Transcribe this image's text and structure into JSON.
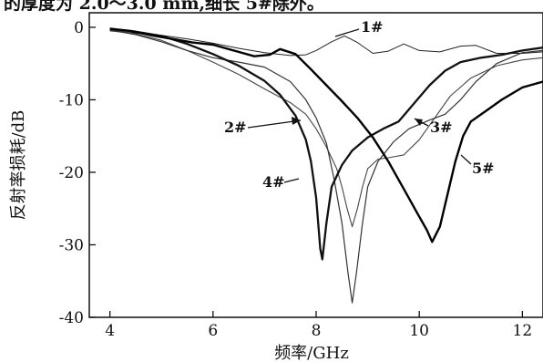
{
  "caption_fragment": "的厚度为 2.0～3.0 mm,细长 5#除外。",
  "chart_data": {
    "type": "line",
    "title": "",
    "xlabel": "频率/GHz",
    "ylabel": "反射率损耗/dB",
    "xlim": [
      3.6,
      12.4
    ],
    "ylim": [
      -40,
      2
    ],
    "xticks": [
      4,
      6,
      8,
      10,
      12
    ],
    "yticks": [
      0,
      -10,
      -20,
      -30,
      -40
    ],
    "x_tick_labels": [
      "4",
      "6",
      "8",
      "10",
      "12"
    ],
    "y_tick_labels": [
      "0",
      "-10",
      "-20",
      "-30",
      "-40"
    ],
    "grid": false,
    "legend": "none (series marked by callout labels)",
    "series": [
      {
        "name": "1#",
        "label": "1#",
        "color": "#222222",
        "points": [
          [
            4.0,
            -0.5
          ],
          [
            4.5,
            -0.8
          ],
          [
            5.0,
            -1.1
          ],
          [
            5.5,
            -1.6
          ],
          [
            6.0,
            -2.2
          ],
          [
            6.5,
            -2.9
          ],
          [
            7.0,
            -3.5
          ],
          [
            7.5,
            -3.9
          ],
          [
            7.8,
            -3.8
          ],
          [
            8.0,
            -3.2
          ],
          [
            8.3,
            -2.0
          ],
          [
            8.55,
            -1.2
          ],
          [
            8.8,
            -2.1
          ],
          [
            9.1,
            -3.6
          ],
          [
            9.4,
            -3.3
          ],
          [
            9.7,
            -2.3
          ],
          [
            10.0,
            -3.2
          ],
          [
            10.4,
            -3.4
          ],
          [
            10.8,
            -2.6
          ],
          [
            11.1,
            -2.5
          ],
          [
            11.5,
            -3.6
          ],
          [
            12.0,
            -3.6
          ],
          [
            12.4,
            -3.4
          ]
        ]
      },
      {
        "name": "2#",
        "label": "2#",
        "color": "#444444",
        "points": [
          [
            4.0,
            -0.3
          ],
          [
            4.5,
            -0.9
          ],
          [
            5.0,
            -1.8
          ],
          [
            5.5,
            -3.2
          ],
          [
            6.0,
            -4.8
          ],
          [
            6.5,
            -6.5
          ],
          [
            7.0,
            -8.5
          ],
          [
            7.5,
            -10.4
          ],
          [
            7.8,
            -12.0
          ],
          [
            8.0,
            -14.0
          ],
          [
            8.2,
            -16.5
          ],
          [
            8.4,
            -19.5
          ],
          [
            8.5,
            -22.0
          ],
          [
            8.6,
            -25.0
          ],
          [
            8.7,
            -27.5
          ],
          [
            8.8,
            -25.0
          ],
          [
            8.9,
            -22.0
          ],
          [
            9.0,
            -19.5
          ],
          [
            9.2,
            -18.2
          ],
          [
            9.4,
            -18.0
          ],
          [
            9.7,
            -17.6
          ],
          [
            10.0,
            -15.5
          ],
          [
            10.3,
            -12.5
          ],
          [
            10.6,
            -9.5
          ],
          [
            11.0,
            -7.0
          ],
          [
            11.5,
            -5.3
          ],
          [
            12.0,
            -4.5
          ],
          [
            12.4,
            -4.2
          ]
        ]
      },
      {
        "name": "3#",
        "label": "3#",
        "color": "#333333",
        "points": [
          [
            4.0,
            -0.4
          ],
          [
            4.5,
            -1.0
          ],
          [
            5.0,
            -2.0
          ],
          [
            5.5,
            -3.2
          ],
          [
            6.0,
            -4.2
          ],
          [
            6.5,
            -4.8
          ],
          [
            7.0,
            -5.5
          ],
          [
            7.5,
            -7.5
          ],
          [
            7.8,
            -10.0
          ],
          [
            8.0,
            -12.5
          ],
          [
            8.2,
            -16.0
          ],
          [
            8.35,
            -21.0
          ],
          [
            8.5,
            -27.0
          ],
          [
            8.62,
            -34.0
          ],
          [
            8.7,
            -38.0
          ],
          [
            8.78,
            -34.0
          ],
          [
            8.9,
            -27.0
          ],
          [
            9.0,
            -22.0
          ],
          [
            9.2,
            -18.5
          ],
          [
            9.5,
            -15.8
          ],
          [
            9.8,
            -14.0
          ],
          [
            10.2,
            -12.8
          ],
          [
            10.5,
            -12.0
          ],
          [
            10.8,
            -10.0
          ],
          [
            11.1,
            -7.5
          ],
          [
            11.5,
            -5.0
          ],
          [
            12.0,
            -3.5
          ],
          [
            12.4,
            -3.2
          ]
        ]
      },
      {
        "name": "4#",
        "label": "4#",
        "color": "#111111",
        "points": [
          [
            4.0,
            -0.2
          ],
          [
            4.5,
            -0.6
          ],
          [
            5.0,
            -1.2
          ],
          [
            5.5,
            -2.3
          ],
          [
            6.0,
            -3.7
          ],
          [
            6.5,
            -5.3
          ],
          [
            7.0,
            -7.4
          ],
          [
            7.3,
            -9.3
          ],
          [
            7.6,
            -12.2
          ],
          [
            7.8,
            -15.5
          ],
          [
            7.9,
            -18.5
          ],
          [
            8.0,
            -23.5
          ],
          [
            8.08,
            -30.5
          ],
          [
            8.12,
            -32.0
          ],
          [
            8.2,
            -27.0
          ],
          [
            8.3,
            -22.0
          ],
          [
            8.5,
            -19.0
          ],
          [
            8.7,
            -17.0
          ],
          [
            9.0,
            -15.2
          ],
          [
            9.3,
            -14.0
          ],
          [
            9.6,
            -13.0
          ],
          [
            9.9,
            -10.5
          ],
          [
            10.2,
            -8.0
          ],
          [
            10.5,
            -6.0
          ],
          [
            10.8,
            -4.8
          ],
          [
            11.2,
            -4.2
          ],
          [
            11.6,
            -3.8
          ],
          [
            12.0,
            -3.2
          ],
          [
            12.4,
            -2.8
          ]
        ]
      },
      {
        "name": "5#",
        "label": "5#",
        "color": "#000000",
        "points": [
          [
            4.0,
            -0.2
          ],
          [
            4.4,
            -0.5
          ],
          [
            4.8,
            -1.1
          ],
          [
            5.2,
            -1.6
          ],
          [
            5.6,
            -2.1
          ],
          [
            6.0,
            -2.4
          ],
          [
            6.4,
            -3.2
          ],
          [
            6.8,
            -4.0
          ],
          [
            7.1,
            -3.8
          ],
          [
            7.3,
            -3.0
          ],
          [
            7.6,
            -3.7
          ],
          [
            7.9,
            -5.8
          ],
          [
            8.2,
            -8.0
          ],
          [
            8.5,
            -10.2
          ],
          [
            8.8,
            -12.5
          ],
          [
            9.1,
            -15.2
          ],
          [
            9.4,
            -18.5
          ],
          [
            9.7,
            -22.3
          ],
          [
            9.95,
            -25.5
          ],
          [
            10.15,
            -28.0
          ],
          [
            10.25,
            -29.6
          ],
          [
            10.4,
            -27.5
          ],
          [
            10.55,
            -23.0
          ],
          [
            10.7,
            -18.5
          ],
          [
            10.85,
            -15.0
          ],
          [
            11.0,
            -13.0
          ],
          [
            11.3,
            -11.5
          ],
          [
            11.6,
            -10.0
          ],
          [
            12.0,
            -8.3
          ],
          [
            12.4,
            -7.5
          ]
        ]
      }
    ]
  }
}
